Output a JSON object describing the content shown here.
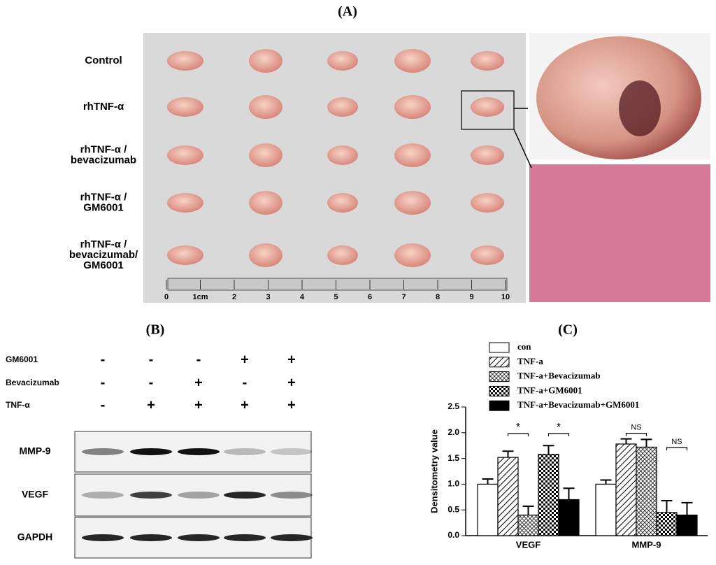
{
  "panel_a": {
    "label": "(A)",
    "rows": [
      [
        "Control"
      ],
      [
        "rhTNF-α"
      ],
      [
        "rhTNF-α /",
        "bevacizumab"
      ],
      [
        "rhTNF-α /",
        "GM6001"
      ],
      [
        "rhTNF-α /",
        "bevacizumab/",
        "GM6001"
      ]
    ],
    "ruler": [
      "0",
      "1cm",
      "2",
      "3",
      "4",
      "5",
      "6",
      "7",
      "8",
      "9",
      "10"
    ]
  },
  "panel_b": {
    "label": "(B)",
    "conditions": [
      {
        "name": "GM6001",
        "signs": [
          "-",
          "-",
          "-",
          "+",
          "+"
        ]
      },
      {
        "name": "Bevacizumab",
        "signs": [
          "-",
          "-",
          "+",
          "-",
          "+"
        ]
      },
      {
        "name": "TNF-α",
        "signs": [
          "-",
          "+",
          "+",
          "+",
          "+"
        ]
      }
    ],
    "blots": [
      "MMP-9",
      "VEGF",
      "GAPDH"
    ]
  },
  "chart_data": {
    "type": "bar",
    "title": "(C)",
    "y_label": "Densitometry value",
    "categories": [
      "VEGF",
      "MMP-9"
    ],
    "series": [
      {
        "name": "con",
        "color": "#ffffff",
        "pattern": "none",
        "values": [
          1.0,
          1.0
        ],
        "errors": [
          0.1,
          0.08
        ]
      },
      {
        "name": "TNF-a",
        "color": "#ffffff",
        "pattern": "hatch",
        "values": [
          1.52,
          1.78
        ],
        "errors": [
          0.12,
          0.1
        ]
      },
      {
        "name": "TNF-a+Bevacizumab",
        "color": "#ffffff",
        "pattern": "crosshatch",
        "values": [
          0.4,
          1.72
        ],
        "errors": [
          0.17,
          0.15
        ]
      },
      {
        "name": "TNF-a+GM6001",
        "color": "#ffffff",
        "pattern": "checker",
        "values": [
          1.58,
          0.45
        ],
        "errors": [
          0.17,
          0.23
        ]
      },
      {
        "name": "TNF-a+Bevacizumab+GM6001",
        "color": "#000000",
        "pattern": "none",
        "values": [
          0.7,
          0.4
        ],
        "errors": [
          0.22,
          0.24
        ]
      }
    ],
    "ylim": [
      0,
      2.5
    ],
    "yticks": [
      {
        "value": 0,
        "label": "0.0"
      },
      0.5,
      {
        "value": 1,
        "label": "1.0"
      },
      1.5,
      {
        "value": 2,
        "label": "2.0"
      },
      2.5
    ],
    "annotations": [
      {
        "text": "*",
        "category": 0,
        "from": 1,
        "to": 2
      },
      {
        "text": "*",
        "category": 0,
        "from": 3,
        "to": 4
      },
      {
        "text": "NS",
        "category": 1,
        "from": 1,
        "to": 2
      },
      {
        "text": "NS",
        "category": 1,
        "from": 3,
        "to": 4
      }
    ]
  }
}
